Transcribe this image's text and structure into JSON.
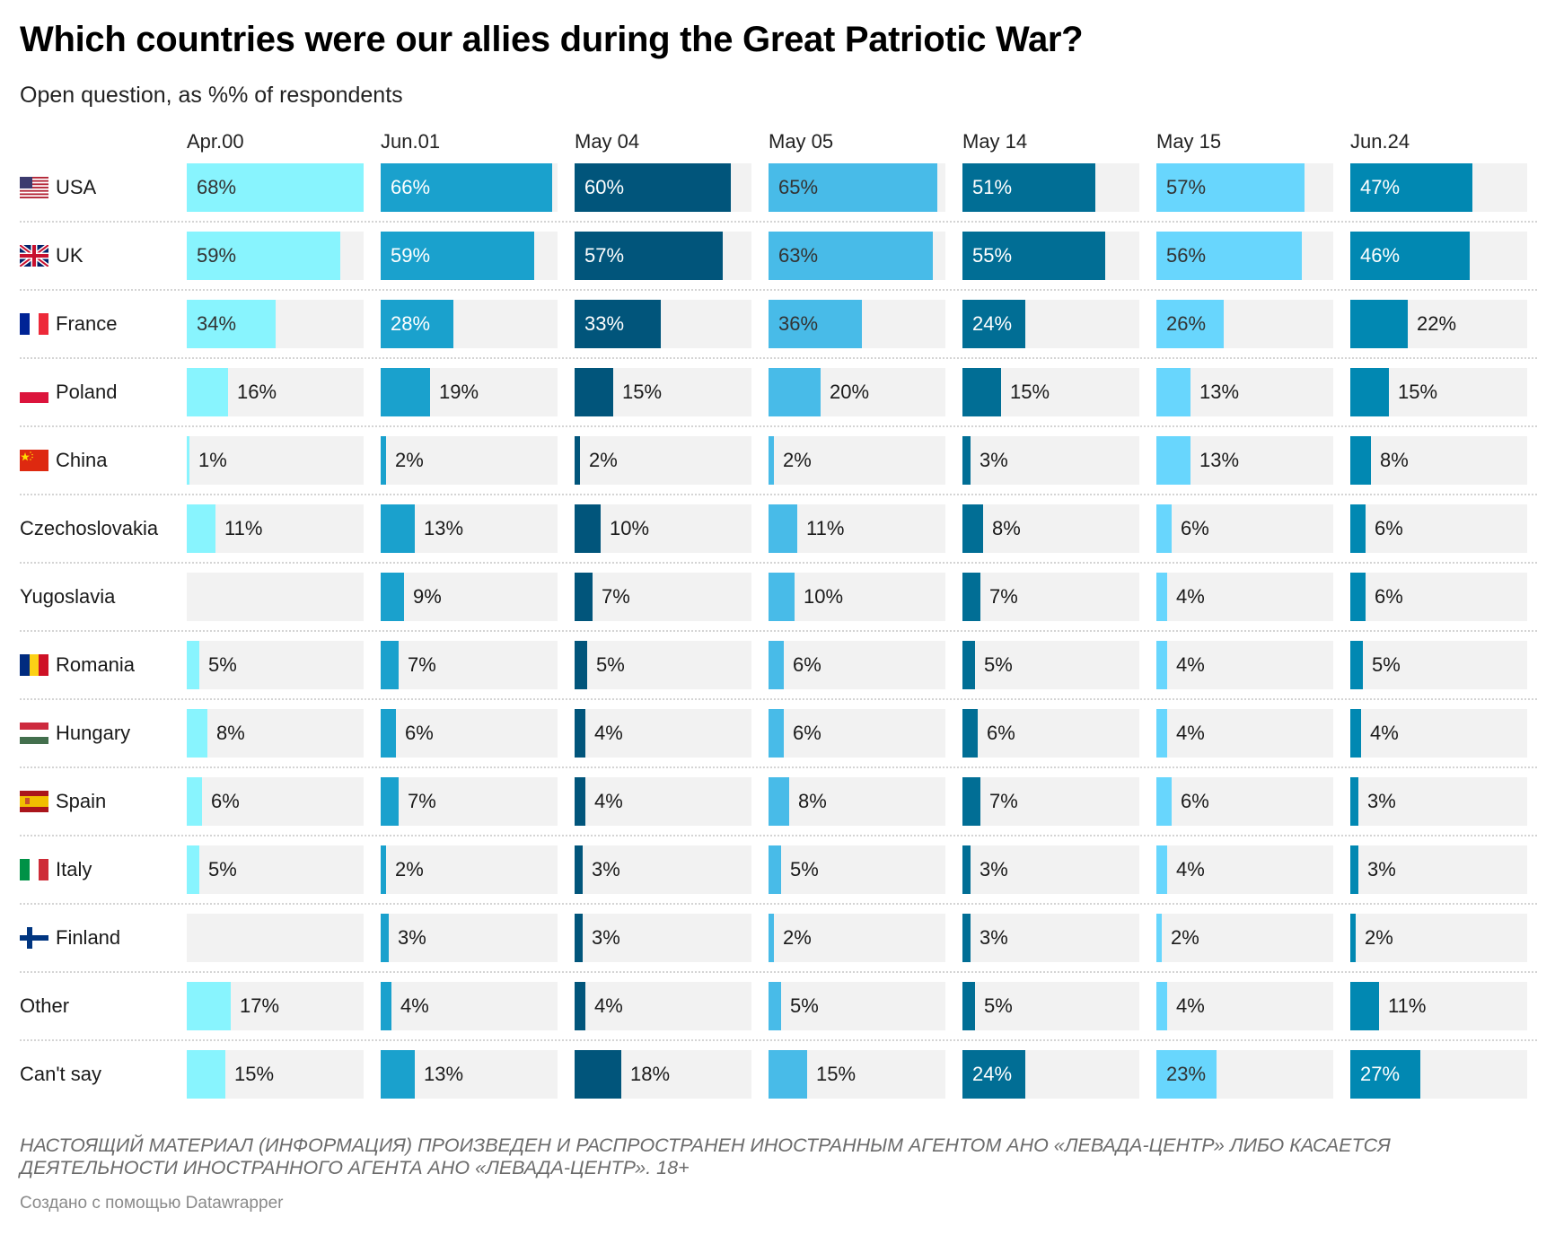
{
  "header": {
    "title": "Which countries were our allies during the Great Patriotic War?",
    "subtitle": "Open question, as %% of respondents"
  },
  "footer": {
    "note": "НАСТОЯЩИЙ МАТЕРИАЛ (ИНФОРМАЦИЯ) ПРОИЗВЕДЕН И РАСПРОСТРАНЕН ИНОСТРАННЫМ АГЕНТОМ АНО «ЛЕВАДА-ЦЕНТР» ЛИБО КАСАЕТСЯ ДЕЯТЕЛЬНОСТИ ИНОСТРАННОГО АГЕНТА АНО «ЛЕВАДА-ЦЕНТР». 18+",
    "credit": "Создано с помощью Datawrapper"
  },
  "chart_data": {
    "type": "table",
    "subtype": "small-multiple bar table",
    "title": "Which countries were our allies during the Great Patriotic War?",
    "subtitle": "Open question, as %% of respondents",
    "unit": "%",
    "scale_max": 68,
    "columns": [
      {
        "name": "Apr.00",
        "color": "#88f4fe",
        "label_inside_color": "#333333"
      },
      {
        "name": "Jun.01",
        "color": "#1aa1cd",
        "label_inside_color": "#ffffff"
      },
      {
        "name": "May 04",
        "color": "#01557b",
        "label_inside_color": "#ffffff"
      },
      {
        "name": "May 05",
        "color": "#48bbe8",
        "label_inside_color": "#333333"
      },
      {
        "name": "May 14",
        "color": "#016e95",
        "label_inside_color": "#ffffff"
      },
      {
        "name": "May 15",
        "color": "#68d6fd",
        "label_inside_color": "#333333"
      },
      {
        "name": "Jun.24",
        "color": "#0188b2",
        "label_inside_color": "#ffffff"
      }
    ],
    "rows": [
      {
        "label": "USA",
        "flag": "us-flag-icon",
        "values": [
          68,
          66,
          60,
          65,
          51,
          57,
          47
        ]
      },
      {
        "label": "UK",
        "flag": "uk-flag-icon",
        "values": [
          59,
          59,
          57,
          63,
          55,
          56,
          46
        ]
      },
      {
        "label": "France",
        "flag": "france-flag-icon",
        "values": [
          34,
          28,
          33,
          36,
          24,
          26,
          22
        ]
      },
      {
        "label": "Poland",
        "flag": "poland-flag-icon",
        "values": [
          16,
          19,
          15,
          20,
          15,
          13,
          15
        ]
      },
      {
        "label": "China",
        "flag": "china-flag-icon",
        "values": [
          1,
          2,
          2,
          2,
          3,
          13,
          8
        ]
      },
      {
        "label": "Czechoslovakia",
        "flag": null,
        "values": [
          11,
          13,
          10,
          11,
          8,
          6,
          6
        ]
      },
      {
        "label": "Yugoslavia",
        "flag": null,
        "values": [
          null,
          9,
          7,
          10,
          7,
          4,
          6
        ]
      },
      {
        "label": "Romania",
        "flag": "romania-flag-icon",
        "values": [
          5,
          7,
          5,
          6,
          5,
          4,
          5
        ]
      },
      {
        "label": "Hungary",
        "flag": "hungary-flag-icon",
        "values": [
          8,
          6,
          4,
          6,
          6,
          4,
          4
        ]
      },
      {
        "label": "Spain",
        "flag": "spain-flag-icon",
        "values": [
          6,
          7,
          4,
          8,
          7,
          6,
          3
        ]
      },
      {
        "label": "Italy",
        "flag": "italy-flag-icon",
        "values": [
          5,
          2,
          3,
          5,
          3,
          4,
          3
        ]
      },
      {
        "label": "Finland",
        "flag": "finland-flag-icon",
        "values": [
          null,
          3,
          3,
          2,
          3,
          2,
          2
        ]
      },
      {
        "label": "Other",
        "flag": null,
        "values": [
          17,
          4,
          4,
          5,
          5,
          4,
          11
        ]
      },
      {
        "label": "Can't say",
        "flag": null,
        "values": [
          15,
          13,
          18,
          15,
          24,
          23,
          27
        ]
      }
    ]
  }
}
